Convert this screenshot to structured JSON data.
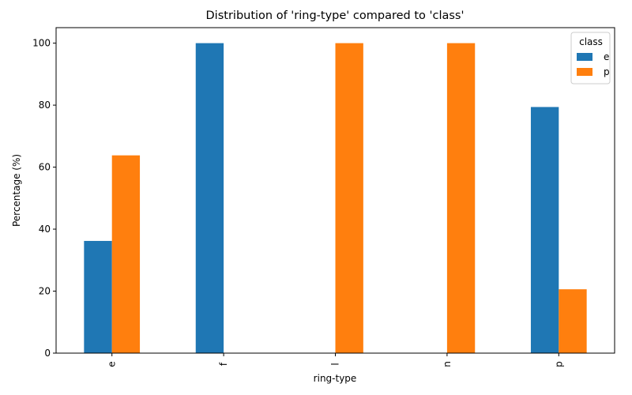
{
  "chart_data": {
    "type": "bar",
    "title": "Distribution of 'ring-type' compared to 'class'",
    "xlabel": "ring-type",
    "ylabel": "Percentage (%)",
    "categories": [
      "e",
      "f",
      "l",
      "n",
      "p"
    ],
    "series": [
      {
        "name": "e",
        "color": "#1f77b4",
        "values": [
          36.2,
          100,
          0,
          0,
          79.4
        ]
      },
      {
        "name": "p",
        "color": "#ff7f0e",
        "values": [
          63.8,
          0,
          100,
          100,
          20.6
        ]
      }
    ],
    "ylim": [
      0,
      105
    ],
    "yticks": [
      0,
      20,
      40,
      60,
      80,
      100
    ],
    "grid": false,
    "legend": {
      "title": "class",
      "position": "top-right"
    }
  }
}
